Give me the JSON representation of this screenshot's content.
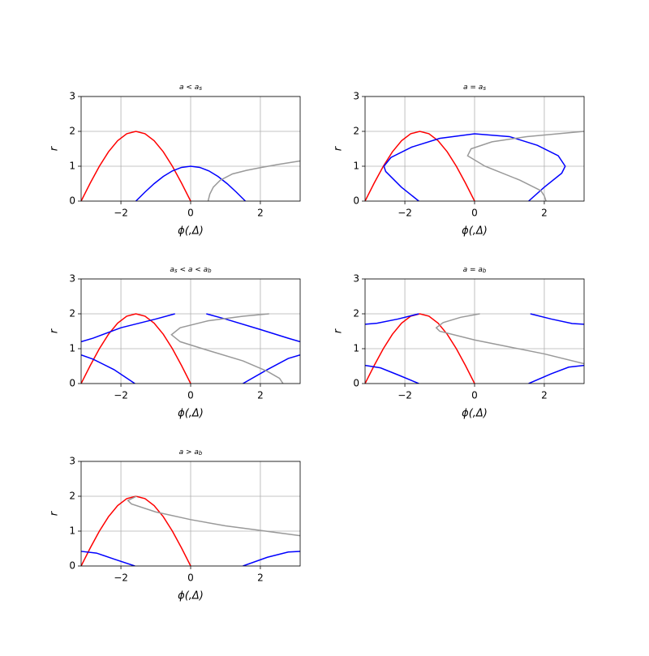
{
  "chart_data": [
    {
      "type": "line",
      "title": "a < a_s",
      "xlabel": "ϕ(,Δ)",
      "ylabel": "r",
      "xlim": [
        -3.1416,
        3.1416
      ],
      "ylim": [
        0,
        3
      ],
      "xticks": [
        {
          "value": -2,
          "label": "−2"
        },
        0,
        2
      ],
      "yticks": [
        0,
        1,
        2,
        3
      ],
      "grid": true,
      "series": [
        {
          "color": "#ff0000",
          "x": [
            -3.1416,
            -2.8798,
            -2.618,
            -2.3562,
            -2.0944,
            -1.8326,
            -1.5708,
            -1.309,
            -1.0472,
            -0.7854,
            -0.5236,
            -0.2618,
            0
          ],
          "values": [
            0,
            0.518,
            1,
            1.414,
            1.732,
            1.932,
            2,
            1.932,
            1.732,
            1.414,
            1,
            0.518,
            0
          ]
        },
        {
          "color": "#0000ff",
          "x": [
            -1.5708,
            -1.309,
            -1.0472,
            -0.7854,
            -0.5236,
            -0.2618,
            0,
            0.2618,
            0.5236,
            0.7854,
            1.0472,
            1.309,
            1.5708
          ],
          "values": [
            0,
            0.259,
            0.5,
            0.707,
            0.866,
            0.966,
            1,
            0.966,
            0.866,
            0.707,
            0.5,
            0.259,
            0
          ]
        },
        {
          "color": "#999999",
          "x": [
            0.5,
            0.55,
            0.65,
            0.85,
            1.2,
            1.6,
            2.0,
            2.5,
            3.14
          ],
          "values": [
            0,
            0.2,
            0.4,
            0.6,
            0.78,
            0.88,
            0.96,
            1.05,
            1.15
          ]
        }
      ]
    },
    {
      "type": "line",
      "title": "a = a_s",
      "xlabel": "ϕ(,Δ)",
      "ylabel": "r",
      "xlim": [
        -3.1416,
        3.1416
      ],
      "ylim": [
        0,
        3
      ],
      "xticks": [
        {
          "value": -2,
          "label": "−2"
        },
        0,
        2
      ],
      "yticks": [
        0,
        1,
        2,
        3
      ],
      "grid": true,
      "series": [
        {
          "color": "#ff0000",
          "x": [
            -3.1416,
            -2.8798,
            -2.618,
            -2.3562,
            -2.0944,
            -1.8326,
            -1.5708,
            -1.309,
            -1.0472,
            -0.7854,
            -0.5236,
            -0.2618,
            0
          ],
          "values": [
            0,
            0.518,
            1,
            1.414,
            1.732,
            1.932,
            2,
            1.932,
            1.732,
            1.414,
            1,
            0.518,
            0
          ]
        },
        {
          "color": "#0000ff",
          "x": [
            -1.6,
            -2.1,
            -2.55,
            -2.6,
            -2.4,
            -1.8,
            -1,
            0,
            1,
            1.8,
            2.4,
            2.6,
            2.5,
            2.0,
            1.55
          ],
          "values": [
            0,
            0.4,
            0.85,
            1.0,
            1.25,
            1.55,
            1.8,
            1.93,
            1.85,
            1.6,
            1.3,
            1.0,
            0.8,
            0.4,
            0
          ]
        },
        {
          "color": "#999999",
          "x": [
            2.05,
            2.0,
            1.9,
            1.3,
            0.3,
            -0.2,
            -0.1,
            0.5,
            1.5,
            3.14
          ],
          "values": [
            0,
            0.15,
            0.3,
            0.6,
            1.0,
            1.3,
            1.5,
            1.7,
            1.85,
            2.0
          ]
        }
      ]
    },
    {
      "type": "line",
      "title": "a_s < a < a_b",
      "xlabel": "ϕ(,Δ)",
      "ylabel": "r",
      "xlim": [
        -3.1416,
        3.1416
      ],
      "ylim": [
        0,
        3
      ],
      "xticks": [
        {
          "value": -2,
          "label": "−2"
        },
        0,
        2
      ],
      "yticks": [
        0,
        1,
        2,
        3
      ],
      "grid": true,
      "series": [
        {
          "color": "#ff0000",
          "x": [
            -3.1416,
            -2.8798,
            -2.618,
            -2.3562,
            -2.0944,
            -1.8326,
            -1.5708,
            -1.309,
            -1.0472,
            -0.7854,
            -0.5236,
            -0.2618,
            0
          ],
          "values": [
            0,
            0.518,
            1,
            1.414,
            1.732,
            1.932,
            2,
            1.932,
            1.732,
            1.414,
            1,
            0.518,
            0
          ]
        },
        {
          "color": "#0000ff",
          "x": [
            -3.14,
            -2.8,
            -2,
            -1,
            -0.45,
            null,
            0.45,
            1,
            2,
            2.8,
            3.14,
            null,
            -3.14,
            -2.8,
            -2.2,
            -1.6,
            null,
            1.5,
            2.2,
            2.8,
            3.14
          ],
          "values": [
            1.2,
            1.3,
            1.6,
            1.85,
            2.0,
            null,
            2.0,
            1.85,
            1.55,
            1.3,
            1.2,
            null,
            0.82,
            0.7,
            0.4,
            0,
            null,
            0,
            0.4,
            0.72,
            0.82
          ]
        },
        {
          "color": "#999999",
          "x": [
            2.65,
            2.55,
            2.2,
            1.5,
            0.5,
            -0.3,
            -0.55,
            -0.3,
            0.5,
            1.5,
            2.25
          ],
          "values": [
            0,
            0.15,
            0.35,
            0.65,
            0.95,
            1.2,
            1.4,
            1.6,
            1.8,
            1.93,
            2.0
          ]
        }
      ]
    },
    {
      "type": "line",
      "title": "a = a_b",
      "xlabel": "ϕ(,Δ)",
      "ylabel": "r",
      "xlim": [
        -3.1416,
        3.1416
      ],
      "ylim": [
        0,
        3
      ],
      "xticks": [
        {
          "value": -2,
          "label": "−2"
        },
        0,
        2
      ],
      "yticks": [
        0,
        1,
        2,
        3
      ],
      "grid": true,
      "series": [
        {
          "color": "#ff0000",
          "x": [
            -3.1416,
            -2.8798,
            -2.618,
            -2.3562,
            -2.0944,
            -1.8326,
            -1.5708,
            -1.309,
            -1.0472,
            -0.7854,
            -0.5236,
            -0.2618,
            0
          ],
          "values": [
            0,
            0.518,
            1,
            1.414,
            1.732,
            1.932,
            2,
            1.932,
            1.732,
            1.414,
            1,
            0.518,
            0
          ]
        },
        {
          "color": "#0000ff",
          "x": [
            -3.14,
            -2.8,
            -2.2,
            -1.6,
            null,
            1.6,
            2.2,
            2.8,
            3.14,
            null,
            -3.14,
            -2.7,
            -2.2,
            -1.6,
            null,
            1.55,
            2.2,
            2.7,
            3.14
          ],
          "values": [
            1.7,
            1.73,
            1.85,
            2.0,
            null,
            2.0,
            1.85,
            1.72,
            1.7,
            null,
            0.52,
            0.45,
            0.25,
            0,
            null,
            0,
            0.28,
            0.47,
            0.52
          ]
        },
        {
          "color": "#999999",
          "x": [
            3.14,
            2,
            1,
            0,
            -1,
            -1.1,
            -0.9,
            -0.4,
            0.15
          ],
          "values": [
            0.57,
            0.85,
            1.05,
            1.25,
            1.5,
            1.6,
            1.75,
            1.9,
            2.0
          ]
        }
      ]
    },
    {
      "type": "line",
      "title": "a > a_b",
      "xlabel": "ϕ(,Δ)",
      "ylabel": "r",
      "xlim": [
        -3.1416,
        3.1416
      ],
      "ylim": [
        0,
        3
      ],
      "xticks": [
        {
          "value": -2,
          "label": "−2"
        },
        0,
        2
      ],
      "yticks": [
        0,
        1,
        2,
        3
      ],
      "grid": true,
      "series": [
        {
          "color": "#ff0000",
          "x": [
            -3.1416,
            -2.8798,
            -2.618,
            -2.3562,
            -2.0944,
            -1.8326,
            -1.5708,
            -1.309,
            -1.0472,
            -0.7854,
            -0.5236,
            -0.2618,
            0
          ],
          "values": [
            0,
            0.518,
            1,
            1.414,
            1.732,
            1.932,
            2,
            1.932,
            1.732,
            1.414,
            1,
            0.518,
            0
          ]
        },
        {
          "color": "#0000ff",
          "x": [
            -3.14,
            -2.7,
            -2.2,
            -1.6,
            null,
            1.5,
            2.2,
            2.8,
            3.14
          ],
          "values": [
            0.42,
            0.37,
            0.2,
            0,
            null,
            0,
            0.25,
            0.4,
            0.42
          ]
        },
        {
          "color": "#999999",
          "x": [
            3.14,
            2,
            1,
            0,
            -1,
            -1.7,
            -1.8,
            -1.55
          ],
          "values": [
            0.87,
            1.02,
            1.15,
            1.33,
            1.55,
            1.78,
            1.88,
            2.0
          ]
        }
      ]
    }
  ]
}
